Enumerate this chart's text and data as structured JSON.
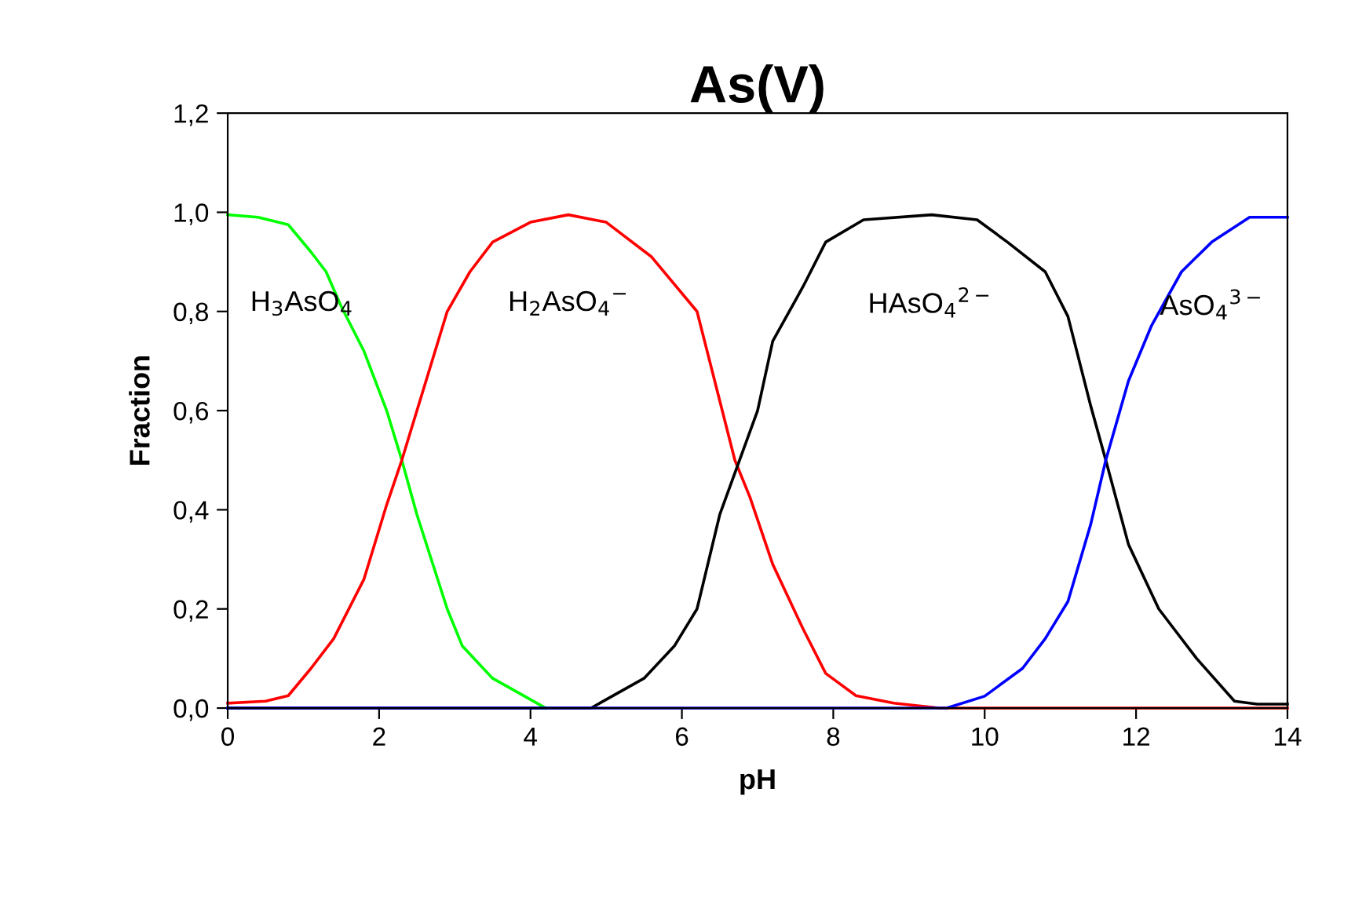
{
  "chart_data": {
    "type": "line",
    "title": "As(V)",
    "xlabel": "pH",
    "ylabel": "Fraction",
    "xlim": [
      0,
      14
    ],
    "xticks": [
      0,
      2,
      4,
      6,
      8,
      10,
      12,
      14
    ],
    "ylim": [
      0,
      1.2
    ],
    "yticks": [
      {
        "value": 0,
        "label": "0,0"
      },
      {
        "value": 0.2,
        "label": "0,2"
      },
      {
        "value": 0.4,
        "label": "0,4"
      },
      {
        "value": 0.6,
        "label": "0,6"
      },
      {
        "value": 0.8,
        "label": "0,8"
      },
      {
        "value": 1.0,
        "label": "1,0"
      },
      {
        "value": 1.2,
        "label": "1,2"
      }
    ],
    "grid": false,
    "legend": false,
    "marker": "none",
    "line_style": "solid",
    "series": [
      {
        "name": "H$_{3}$AsO$_{4}$",
        "color": "#00ff00",
        "x": [
          0,
          0.4,
          0.8,
          1.1,
          1.3,
          1.5,
          1.8,
          2.1,
          2.3,
          2.5,
          2.9,
          3.1,
          3.5,
          4.2
        ],
        "values": [
          0.995,
          0.99,
          0.975,
          0.92,
          0.88,
          0.81,
          0.72,
          0.6,
          0.5,
          0.39,
          0.2,
          0.125,
          0.06,
          0.0
        ]
      },
      {
        "name": "H$_{2}$AsO$_{4}$$^{−}$",
        "color": "#ff0000",
        "x": [
          0,
          0.5,
          0.8,
          1.1,
          1.4,
          1.8,
          2.1,
          2.3,
          2.5,
          2.9,
          3.2,
          3.5,
          4.0,
          4.5,
          5.0,
          5.6,
          6.2,
          6.7,
          6.9,
          7.2,
          7.6,
          7.9,
          8.3,
          8.8,
          9.4,
          14
        ],
        "values": [
          0.01,
          0.014,
          0.025,
          0.08,
          0.14,
          0.26,
          0.41,
          0.5,
          0.6,
          0.8,
          0.88,
          0.94,
          0.98,
          0.995,
          0.98,
          0.91,
          0.8,
          0.5,
          0.425,
          0.29,
          0.16,
          0.07,
          0.025,
          0.01,
          0.0,
          0.0
        ]
      },
      {
        "name": "HAsO$_{4}$$^{2−}$",
        "color": "#000000",
        "x": [
          0,
          4.8,
          5.5,
          5.9,
          6.2,
          6.5,
          7.0,
          7.2,
          7.6,
          7.9,
          8.4,
          9.3,
          9.9,
          10.3,
          10.8,
          11.1,
          11.4,
          11.6,
          11.9,
          12.3,
          12.8,
          13.3,
          13.6,
          14
        ],
        "values": [
          0.0,
          0.0,
          0.06,
          0.125,
          0.2,
          0.39,
          0.6,
          0.74,
          0.85,
          0.94,
          0.985,
          0.995,
          0.985,
          0.94,
          0.88,
          0.79,
          0.61,
          0.5,
          0.33,
          0.2,
          0.1,
          0.014,
          0.008,
          0.008
        ]
      },
      {
        "name": "AsO$_{4}$$^{3−}$",
        "color": "#0000ff",
        "x": [
          0,
          9.5,
          10.0,
          10.5,
          10.8,
          11.1,
          11.4,
          11.6,
          11.9,
          12.2,
          12.6,
          13.0,
          13.5,
          14
        ],
        "values": [
          0.0,
          0.0,
          0.024,
          0.08,
          0.14,
          0.215,
          0.37,
          0.5,
          0.66,
          0.77,
          0.88,
          0.94,
          0.99,
          0.99
        ]
      }
    ]
  }
}
